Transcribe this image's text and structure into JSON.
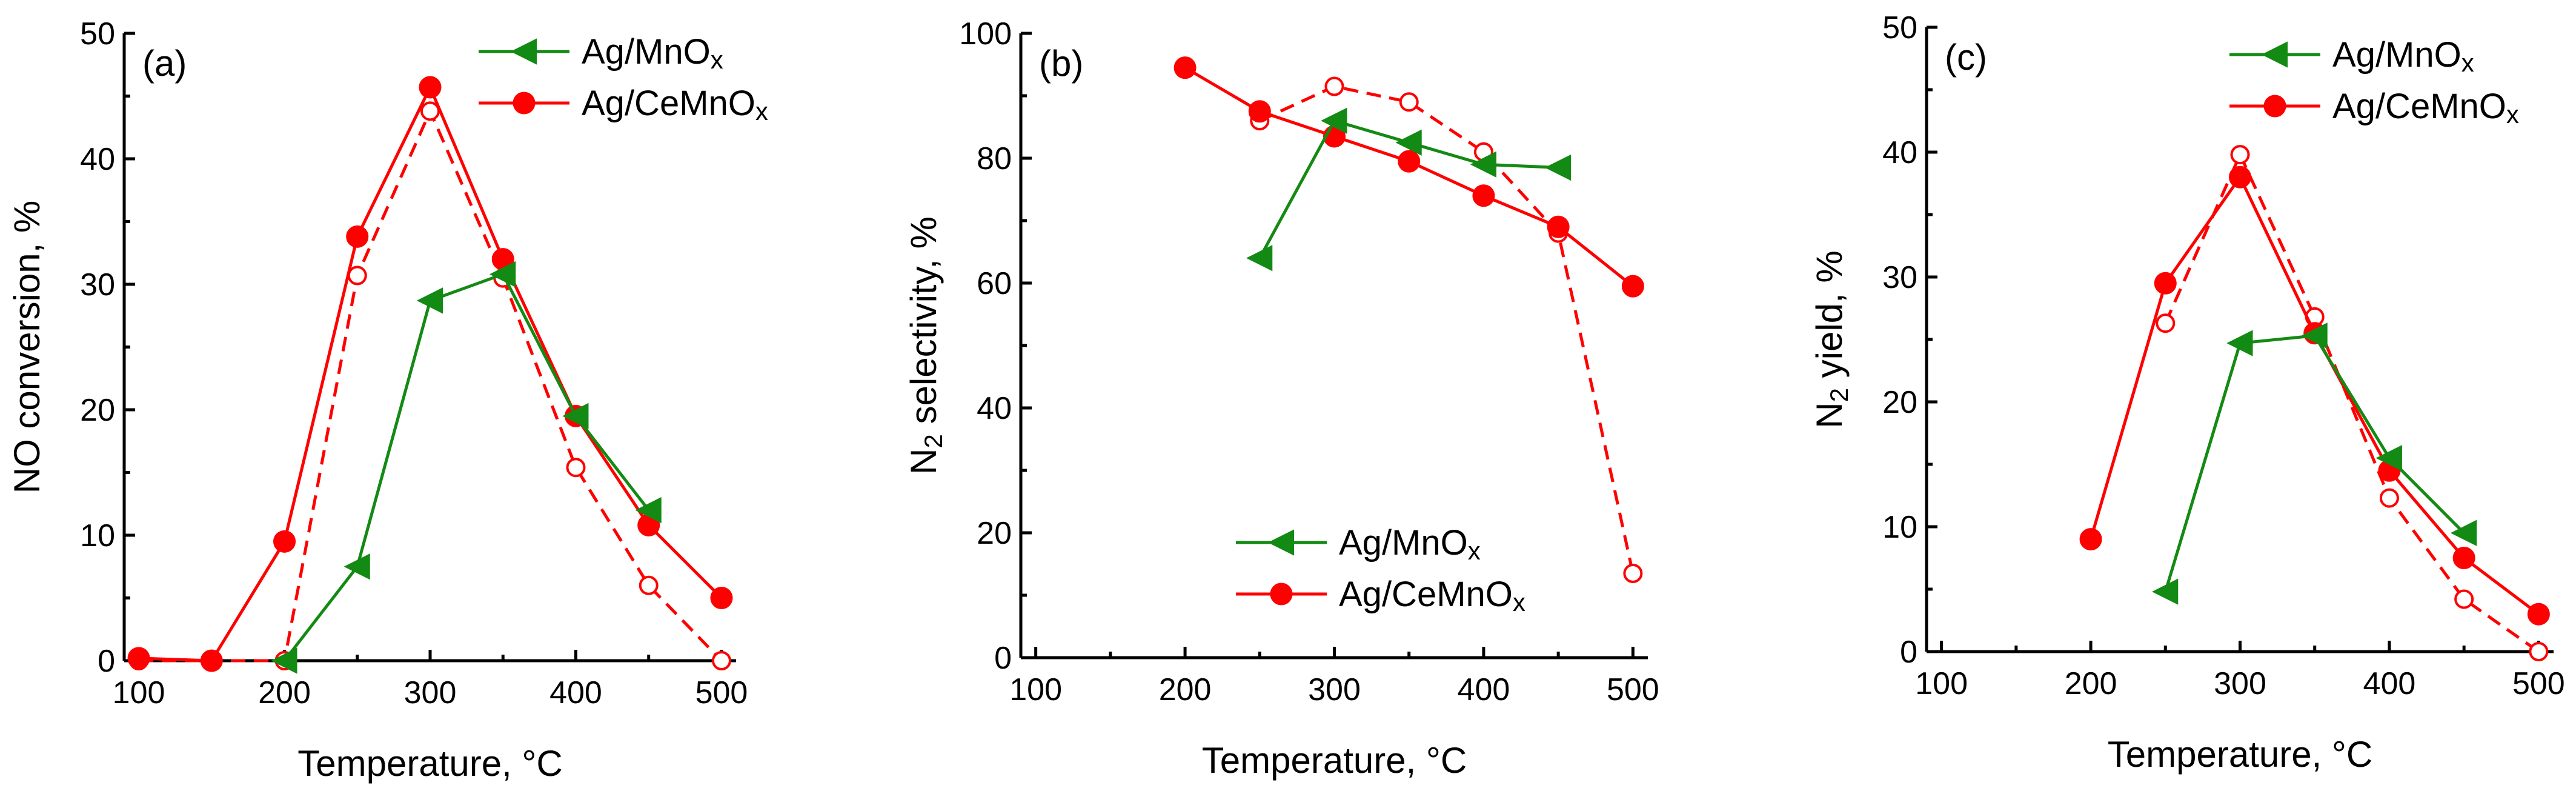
{
  "colors": {
    "green": "#138a13",
    "red": "#ff0000",
    "axis": "#000000"
  },
  "chart_data": [
    {
      "type": "line",
      "panel_label": "(a)",
      "xlabel": "Temperature, °C",
      "ylabel": "NO conversion, %",
      "xlim": [
        90,
        510
      ],
      "ylim": [
        0,
        50
      ],
      "xticks": [
        100,
        200,
        300,
        400,
        500
      ],
      "yticks": [
        0,
        10,
        20,
        30,
        40,
        50
      ],
      "legend_position": "top-right",
      "series": [
        {
          "name": "Ag/MnOx",
          "legend_main": "Ag/MnO",
          "legend_sub": "x",
          "color": "green",
          "marker": "triangle-left",
          "style": "solid",
          "x": [
            200,
            250,
            300,
            350,
            400,
            450
          ],
          "y": [
            0,
            7.5,
            28.7,
            30.8,
            19.5,
            12
          ]
        },
        {
          "name": "Ag/CeMnOx",
          "legend_main": "Ag/CeMnO",
          "legend_sub": "x",
          "color": "red",
          "marker": "circle",
          "style": "solid",
          "x": [
            100,
            150,
            200,
            250,
            300,
            350,
            400,
            450,
            500
          ],
          "y": [
            0.2,
            0,
            9.5,
            33.8,
            45.7,
            32,
            19.5,
            10.8,
            5
          ]
        },
        {
          "name": "Ag/CeMnOx (dashed)",
          "color": "red",
          "marker": "open-circle",
          "style": "dashed",
          "legend": false,
          "x": [
            100,
            150,
            200,
            250,
            300,
            350,
            400,
            450,
            500
          ],
          "y": [
            0,
            0,
            0,
            30.7,
            43.8,
            30.5,
            15.4,
            6,
            0
          ]
        }
      ]
    },
    {
      "type": "line",
      "panel_label": "(b)",
      "xlabel": "Temperature, °C",
      "ylabel_main": "N",
      "ylabel_sub": "2",
      "ylabel_rest": " selectivity, %",
      "xlim": [
        90,
        510
      ],
      "ylim": [
        0,
        100
      ],
      "xticks": [
        100,
        200,
        300,
        400,
        500
      ],
      "yticks": [
        0,
        20,
        40,
        60,
        80,
        100
      ],
      "legend_position": "bottom-right",
      "series": [
        {
          "name": "Ag/MnOx",
          "legend_main": "Ag/MnO",
          "legend_sub": "x",
          "color": "green",
          "marker": "triangle-left",
          "style": "solid",
          "x": [
            250,
            300,
            350,
            400,
            450
          ],
          "y": [
            64,
            86,
            82.5,
            79,
            78.5
          ]
        },
        {
          "name": "Ag/CeMnOx",
          "legend_main": "Ag/CeMnO",
          "legend_sub": "x",
          "color": "red",
          "marker": "circle",
          "style": "solid",
          "x": [
            200,
            250,
            300,
            350,
            400,
            450,
            500
          ],
          "y": [
            94.5,
            87.5,
            83.5,
            79.5,
            74,
            69,
            59.5
          ]
        },
        {
          "name": "Ag/CeMnOx (dashed)",
          "color": "red",
          "marker": "open-circle",
          "style": "dashed",
          "legend": false,
          "x": [
            250,
            300,
            350,
            400,
            450,
            500
          ],
          "y": [
            86,
            91.5,
            89,
            81,
            68,
            13.5
          ]
        }
      ]
    },
    {
      "type": "line",
      "panel_label": "(c)",
      "xlabel": "Temperature, °C",
      "ylabel_main": "N",
      "ylabel_sub": "2",
      "ylabel_rest": " yield, %",
      "xlim": [
        90,
        510
      ],
      "ylim": [
        0,
        50
      ],
      "xticks": [
        100,
        200,
        300,
        400,
        500
      ],
      "yticks": [
        0,
        10,
        20,
        30,
        40,
        50
      ],
      "legend_position": "top-right",
      "series": [
        {
          "name": "Ag/MnOx",
          "legend_main": "Ag/MnO",
          "legend_sub": "x",
          "color": "green",
          "marker": "triangle-left",
          "style": "solid",
          "x": [
            250,
            300,
            350,
            400,
            450
          ],
          "y": [
            4.8,
            24.7,
            25.3,
            15.5,
            9.5
          ]
        },
        {
          "name": "Ag/CeMnOx",
          "legend_main": "Ag/CeMnO",
          "legend_sub": "x",
          "color": "red",
          "marker": "circle",
          "style": "solid",
          "x": [
            200,
            250,
            300,
            350,
            400,
            450,
            500
          ],
          "y": [
            9,
            29.5,
            38,
            25.5,
            14.5,
            7.5,
            3
          ]
        },
        {
          "name": "Ag/CeMnOx (dashed)",
          "color": "red",
          "marker": "open-circle",
          "style": "dashed",
          "legend": false,
          "x": [
            250,
            300,
            350,
            400,
            450,
            500
          ],
          "y": [
            26.3,
            39.8,
            26.8,
            12.3,
            4.2,
            0
          ]
        }
      ]
    }
  ]
}
